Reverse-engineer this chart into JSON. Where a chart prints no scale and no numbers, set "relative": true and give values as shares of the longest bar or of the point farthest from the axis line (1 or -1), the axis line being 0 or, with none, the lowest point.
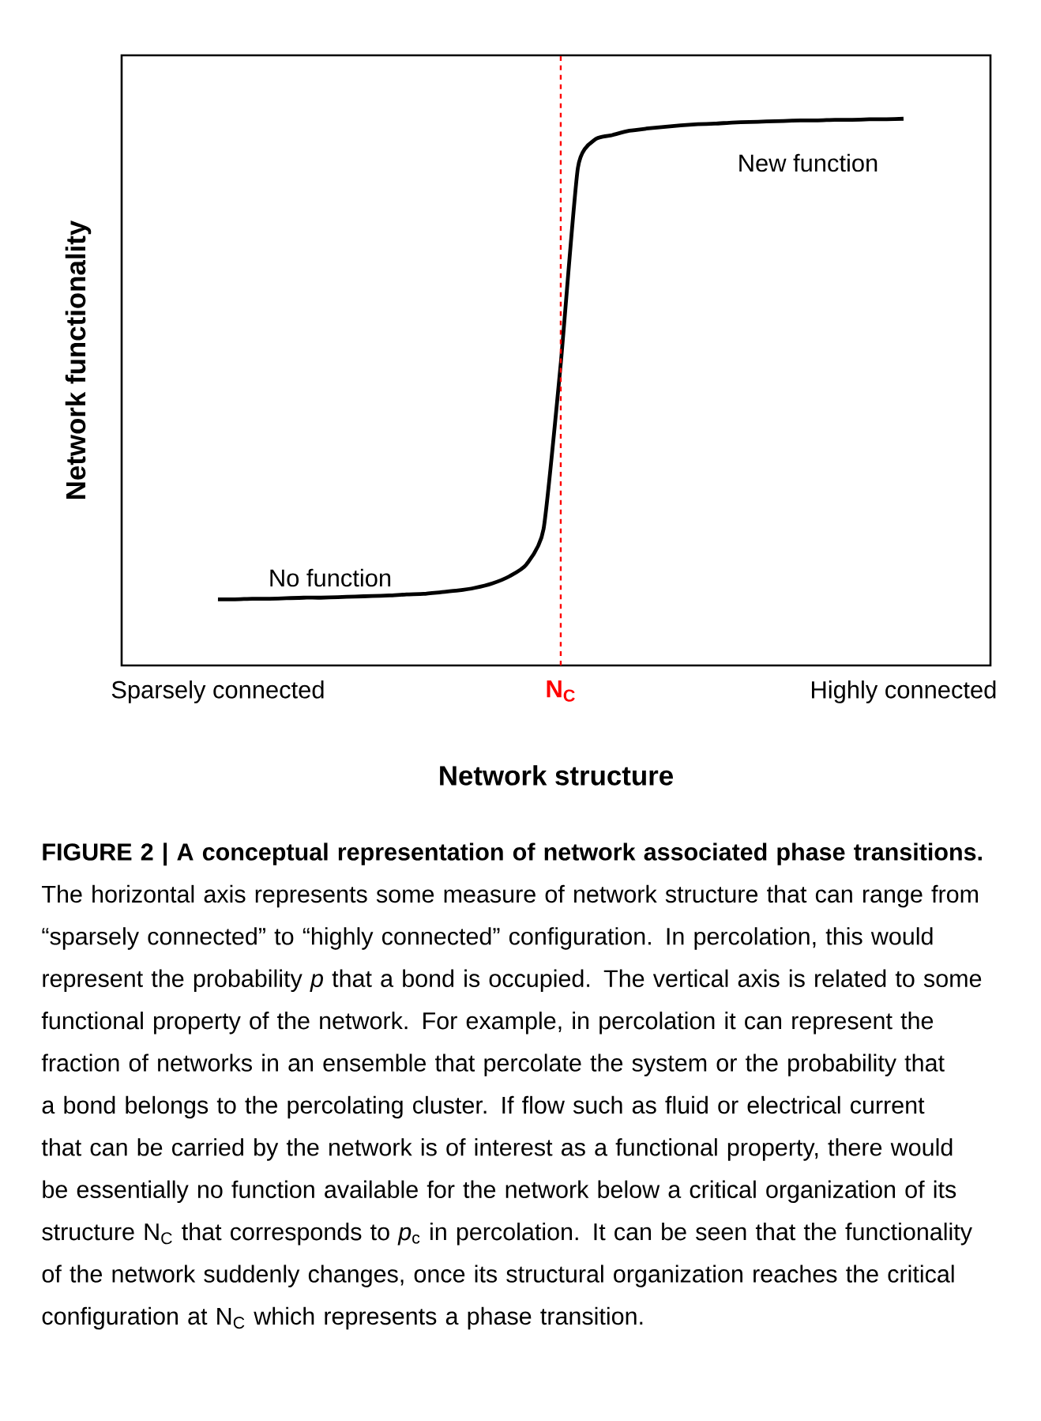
{
  "chart_data": {
    "type": "line",
    "relative": true,
    "color": "#000000",
    "xlabel": "Network structure",
    "ylabel": "Network functionality",
    "categories": [
      "Sparsely connected",
      null,
      null,
      null,
      null,
      null,
      null,
      null,
      null,
      null,
      null,
      null,
      null,
      null,
      null,
      null,
      null,
      null,
      null,
      null,
      "**N$_{C}$**",
      null,
      null,
      null,
      null,
      null,
      null,
      null,
      null,
      null,
      null,
      null,
      null,
      null,
      null,
      null,
      null,
      null,
      null,
      null,
      "Highly connected"
    ],
    "values": [
      0.121,
      0.121,
      0.122,
      0.122,
      0.123,
      0.124,
      0.124,
      0.125,
      0.126,
      0.127,
      0.128,
      0.13,
      0.131,
      0.134,
      0.137,
      0.142,
      0.15,
      0.163,
      0.185,
      0.25,
      0.552,
      0.91,
      0.962,
      0.97,
      0.978,
      0.982,
      0.985,
      0.988,
      0.99,
      0.991,
      0.993,
      0.994,
      0.995,
      0.996,
      0.997,
      0.997,
      0.998,
      0.998,
      0.999,
      0.999,
      1.0
    ],
    "ref_lines": [
      {
        "axis": "x",
        "value": "**N$_{C}$**",
        "color": "#ff0000",
        "line_style": "dashed"
      }
    ],
    "annotations": [
      "No function",
      "New function",
      "**FIGURE 2 | A conceptual representation of network associated phase transitions.** The horizontal axis represents some measure of network structure that can range from “sparsely connected” to “highly connected” configuration. In percolation, this would represent the probability *p* that a bond is occupied. The vertical axis is related to some functional property of the network. For example, in percolation it can represent the fraction of networks in an ensemble that percolate the system or the probability that a bond belongs to the percolating cluster. If flow such as fluid or electrical current that can be carried by the network is of interest as a functional property, there would be essentially no function available for the network below a critical organization of its structure N$_{C}$ that corresponds to *p*$_{c}$ in percolation. It can be seen that the functionality of the network suddenly changes, once its structural organization reaches the critical configuration at N$_{C}$ which represents a phase transition."
    ]
  }
}
